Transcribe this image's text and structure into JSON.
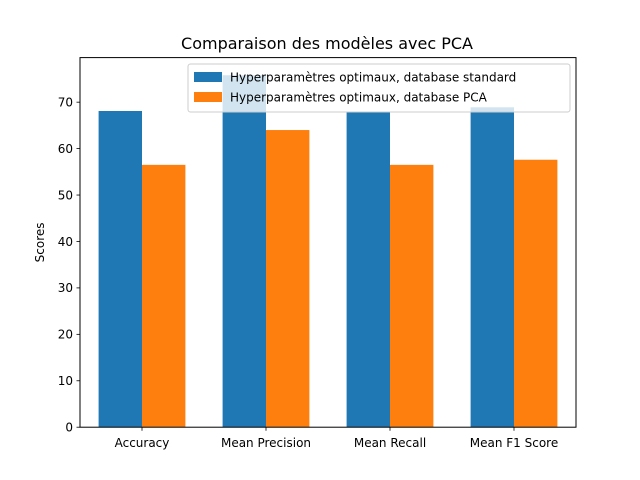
{
  "chart_data": {
    "type": "bar",
    "title": "Comparaison des modèles avec PCA",
    "xlabel": "",
    "ylabel": "Scores",
    "categories": [
      "Accuracy",
      "Mean Precision",
      "Mean Recall",
      "Mean F1 Score"
    ],
    "series": [
      {
        "name": "Hyperparamètres optimaux, database standard",
        "color": "#1f77b4",
        "values": [
          68.1,
          75.8,
          67.9,
          68.9
        ]
      },
      {
        "name": "Hyperparamètres optimaux, database PCA",
        "color": "#ff7f0e",
        "values": [
          56.5,
          64.0,
          56.5,
          57.6
        ]
      }
    ],
    "ylim": [
      0,
      79.6
    ],
    "yticks": [
      0,
      10,
      20,
      30,
      40,
      50,
      60,
      70
    ],
    "grid": false,
    "legend_position": "top-right"
  }
}
